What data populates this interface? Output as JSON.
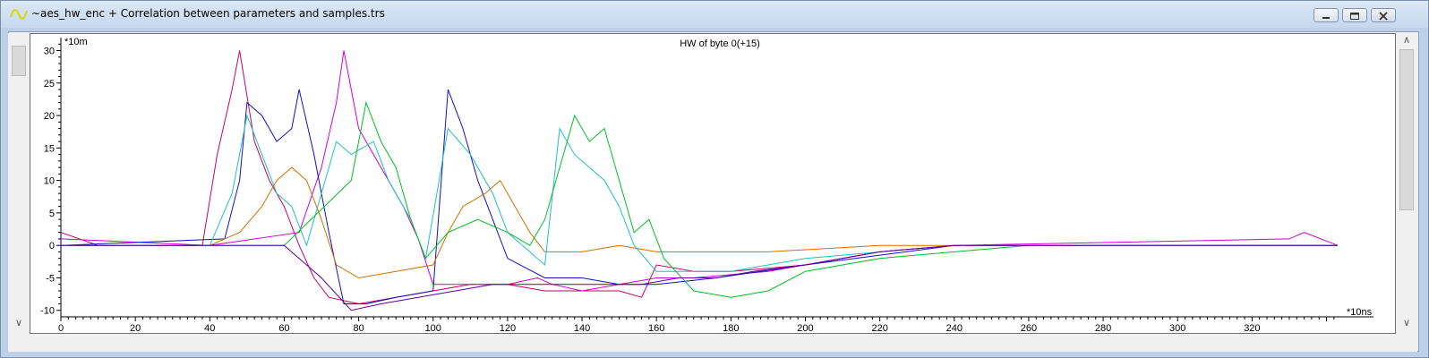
{
  "window": {
    "title": "~aes_hw_enc + Correlation between parameters and samples.trs",
    "controls": [
      "minimize",
      "maximize",
      "close"
    ]
  },
  "chart_data": {
    "type": "line",
    "title": "HW of byte 0(+15)",
    "xlabel": "*10ns",
    "ylabel": "*10m",
    "xlim": [
      0,
      343
    ],
    "ylim": [
      -11,
      32
    ],
    "x_ticks": [
      0,
      20,
      40,
      60,
      80,
      100,
      120,
      140,
      160,
      180,
      200,
      220,
      240,
      260,
      280,
      300,
      320
    ],
    "y_ticks": [
      30,
      25,
      20,
      15,
      10,
      5,
      0,
      -5,
      -10
    ],
    "series": [
      {
        "color": "#cc0066",
        "values": [
          [
            0,
            2
          ],
          [
            10,
            0
          ],
          [
            38,
            0
          ],
          [
            42,
            14
          ],
          [
            46,
            24
          ],
          [
            48,
            30
          ],
          [
            52,
            16
          ],
          [
            56,
            10
          ],
          [
            60,
            6
          ],
          [
            64,
            0
          ],
          [
            68,
            -5
          ],
          [
            72,
            -8
          ],
          [
            80,
            -9
          ],
          [
            90,
            -8
          ],
          [
            100,
            -7
          ],
          [
            110,
            -6
          ],
          [
            120,
            -6
          ],
          [
            130,
            -7
          ],
          [
            140,
            -7
          ],
          [
            150,
            -7
          ],
          [
            156,
            -8
          ],
          [
            160,
            -3
          ],
          [
            170,
            -4
          ],
          [
            180,
            -4
          ],
          [
            200,
            -3
          ],
          [
            220,
            -1
          ],
          [
            240,
            0
          ],
          [
            300,
            0
          ],
          [
            343,
            0
          ]
        ]
      },
      {
        "color": "#d000d0",
        "values": [
          [
            0,
            1
          ],
          [
            40,
            0
          ],
          [
            64,
            2
          ],
          [
            70,
            12
          ],
          [
            74,
            22
          ],
          [
            76,
            30
          ],
          [
            80,
            18
          ],
          [
            86,
            12
          ],
          [
            92,
            6
          ],
          [
            96,
            1
          ],
          [
            100,
            -6
          ],
          [
            110,
            -6
          ],
          [
            120,
            -6
          ],
          [
            128,
            -5
          ],
          [
            132,
            -6
          ],
          [
            140,
            -7
          ],
          [
            150,
            -6
          ],
          [
            160,
            -5
          ],
          [
            170,
            -5
          ],
          [
            190,
            -4
          ],
          [
            220,
            -1
          ],
          [
            240,
            0
          ],
          [
            330,
            1
          ],
          [
            334,
            2
          ],
          [
            343,
            0
          ]
        ]
      },
      {
        "color": "#1010c0",
        "values": [
          [
            0,
            0
          ],
          [
            44,
            1
          ],
          [
            48,
            10
          ],
          [
            50,
            22
          ],
          [
            54,
            20
          ],
          [
            58,
            16
          ],
          [
            62,
            18
          ],
          [
            64,
            24
          ],
          [
            68,
            14
          ],
          [
            72,
            2
          ],
          [
            76,
            -9
          ],
          [
            82,
            -9
          ],
          [
            90,
            -8
          ],
          [
            100,
            -7
          ],
          [
            104,
            24
          ],
          [
            108,
            18
          ],
          [
            112,
            10
          ],
          [
            116,
            4
          ],
          [
            120,
            -2
          ],
          [
            130,
            -5
          ],
          [
            140,
            -5
          ],
          [
            150,
            -6
          ],
          [
            160,
            -6
          ],
          [
            176,
            -5
          ],
          [
            200,
            -3
          ],
          [
            240,
            0
          ],
          [
            343,
            0
          ]
        ]
      },
      {
        "color": "#20c0c0",
        "values": [
          [
            0,
            0
          ],
          [
            40,
            0
          ],
          [
            46,
            8
          ],
          [
            50,
            20
          ],
          [
            54,
            14
          ],
          [
            58,
            8
          ],
          [
            62,
            6
          ],
          [
            66,
            0
          ],
          [
            70,
            8
          ],
          [
            74,
            16
          ],
          [
            78,
            14
          ],
          [
            84,
            16
          ],
          [
            88,
            10
          ],
          [
            94,
            4
          ],
          [
            98,
            -2
          ],
          [
            104,
            18
          ],
          [
            110,
            14
          ],
          [
            116,
            8
          ],
          [
            120,
            2
          ],
          [
            130,
            -3
          ],
          [
            134,
            18
          ],
          [
            138,
            14
          ],
          [
            142,
            12
          ],
          [
            146,
            10
          ],
          [
            150,
            6
          ],
          [
            154,
            0
          ],
          [
            160,
            -4
          ],
          [
            180,
            -4
          ],
          [
            200,
            -2
          ],
          [
            240,
            0
          ],
          [
            343,
            0
          ]
        ]
      },
      {
        "color": "#d07000",
        "values": [
          [
            0,
            0
          ],
          [
            40,
            0
          ],
          [
            48,
            2
          ],
          [
            54,
            6
          ],
          [
            58,
            10
          ],
          [
            62,
            12
          ],
          [
            66,
            10
          ],
          [
            70,
            4
          ],
          [
            74,
            -3
          ],
          [
            80,
            -5
          ],
          [
            90,
            -4
          ],
          [
            100,
            -3
          ],
          [
            104,
            2
          ],
          [
            108,
            6
          ],
          [
            114,
            8
          ],
          [
            118,
            10
          ],
          [
            122,
            6
          ],
          [
            126,
            2
          ],
          [
            130,
            -1
          ],
          [
            140,
            -1
          ],
          [
            150,
            0
          ],
          [
            160,
            -1
          ],
          [
            170,
            -1
          ],
          [
            190,
            -1
          ],
          [
            220,
            0
          ],
          [
            343,
            0
          ]
        ]
      },
      {
        "color": "#00c020",
        "values": [
          [
            0,
            0
          ],
          [
            60,
            0
          ],
          [
            78,
            10
          ],
          [
            82,
            22
          ],
          [
            86,
            16
          ],
          [
            90,
            12
          ],
          [
            94,
            4
          ],
          [
            98,
            -2
          ],
          [
            104,
            2
          ],
          [
            112,
            4
          ],
          [
            120,
            2
          ],
          [
            126,
            0
          ],
          [
            130,
            4
          ],
          [
            134,
            12
          ],
          [
            138,
            20
          ],
          [
            142,
            16
          ],
          [
            146,
            18
          ],
          [
            150,
            10
          ],
          [
            154,
            2
          ],
          [
            158,
            4
          ],
          [
            162,
            -2
          ],
          [
            170,
            -7
          ],
          [
            180,
            -8
          ],
          [
            190,
            -7
          ],
          [
            200,
            -4
          ],
          [
            220,
            -2
          ],
          [
            240,
            -1
          ],
          [
            260,
            0
          ],
          [
            343,
            0
          ]
        ]
      },
      {
        "color": "#5a00a0",
        "values": [
          [
            0,
            0
          ],
          [
            60,
            0
          ],
          [
            70,
            -5
          ],
          [
            78,
            -10
          ],
          [
            86,
            -9
          ],
          [
            96,
            -8
          ],
          [
            106,
            -7
          ],
          [
            116,
            -6
          ],
          [
            126,
            -6
          ],
          [
            136,
            -6
          ],
          [
            146,
            -6
          ],
          [
            156,
            -6
          ],
          [
            166,
            -5
          ],
          [
            176,
            -5
          ],
          [
            186,
            -4
          ],
          [
            200,
            -3
          ],
          [
            220,
            -1
          ],
          [
            240,
            0
          ],
          [
            343,
            0
          ]
        ]
      }
    ]
  }
}
